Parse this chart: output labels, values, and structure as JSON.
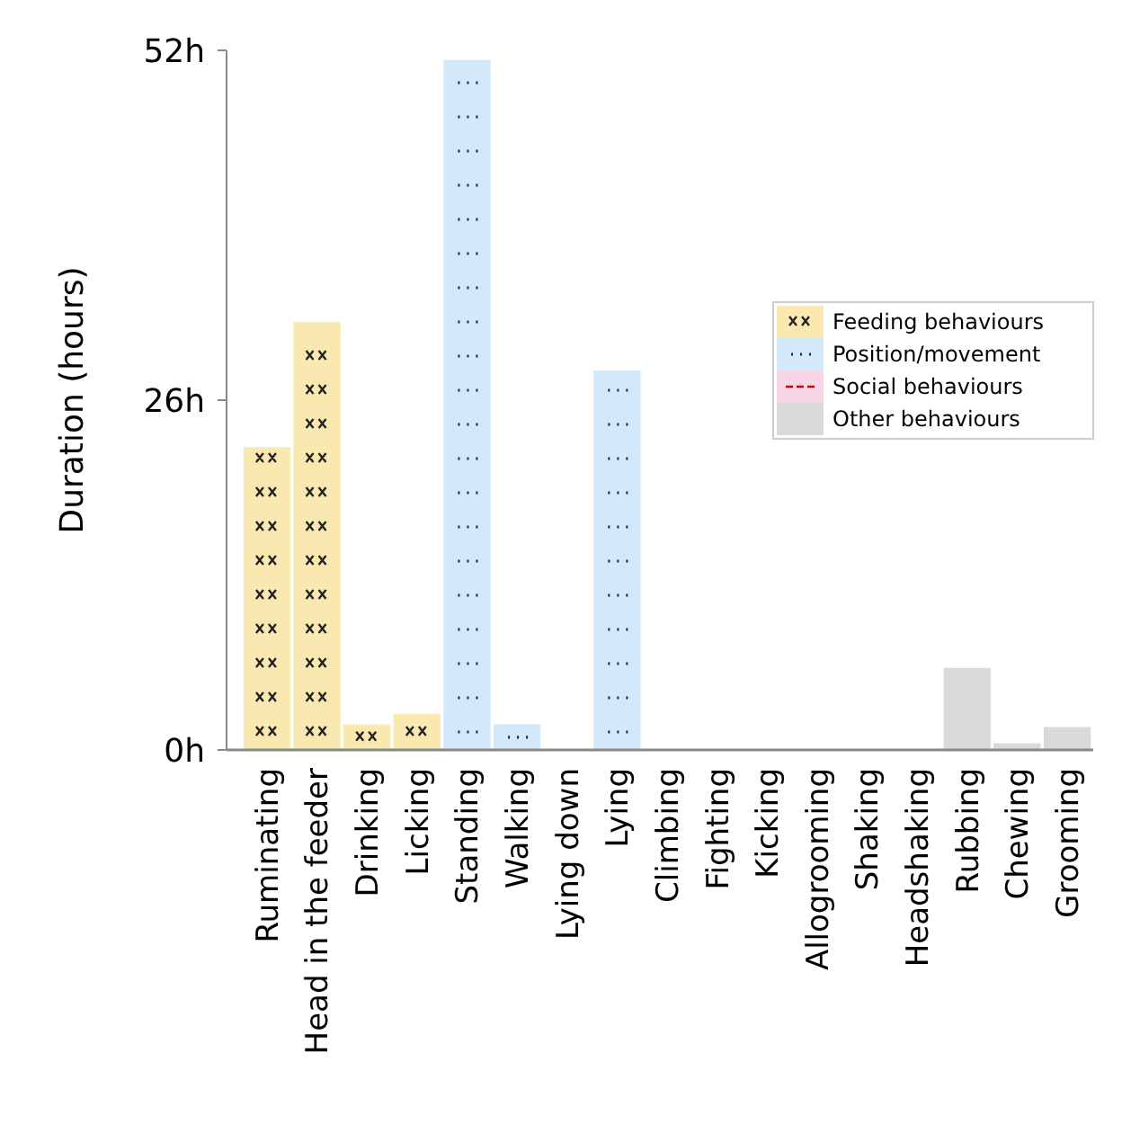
{
  "chart_data": {
    "type": "bar",
    "ylabel": "Duration (hours)",
    "legend": "top right",
    "categories": [
      "Ruminating",
      "Head in the feeder",
      "Drinking",
      "Licking",
      "Standing",
      "Walking",
      "Lying down",
      "Lying",
      "Climbing",
      "Fighting",
      "Kicking",
      "Allogrooming",
      "Shaking",
      "Headshaking",
      "Rubbing",
      "Chewing",
      "Grooming"
    ],
    "series": [
      {
        "name": "Feeding behaviours",
        "color": "#f9e9b0",
        "values": [
          22.5,
          31.8,
          1.9,
          2.7,
          null,
          null,
          null,
          null,
          null,
          null,
          null,
          null,
          null,
          null,
          null,
          null,
          null
        ]
      },
      {
        "name": "Position/movement",
        "color": "#d3e8f8",
        "values": [
          null,
          null,
          null,
          null,
          51.3,
          1.9,
          0,
          28.2,
          null,
          null,
          null,
          null,
          null,
          null,
          null,
          null,
          null
        ]
      },
      {
        "name": "Social behaviours",
        "color": "#f8d6e8",
        "values": [
          null,
          null,
          null,
          null,
          null,
          null,
          null,
          null,
          0,
          0,
          0,
          0,
          null,
          null,
          null,
          null,
          null
        ]
      },
      {
        "name": "Other behaviours",
        "color": "#d9d9d9",
        "values": [
          null,
          null,
          null,
          null,
          null,
          null,
          null,
          null,
          null,
          null,
          null,
          null,
          0,
          0,
          6.1,
          0.5,
          1.7
        ]
      }
    ],
    "ylim": [
      0,
      52
    ],
    "yticks": [
      {
        "value": 0,
        "label": "0h"
      },
      {
        "value": 26,
        "label": "26h"
      },
      {
        "value": 52,
        "label": "52h"
      }
    ]
  }
}
